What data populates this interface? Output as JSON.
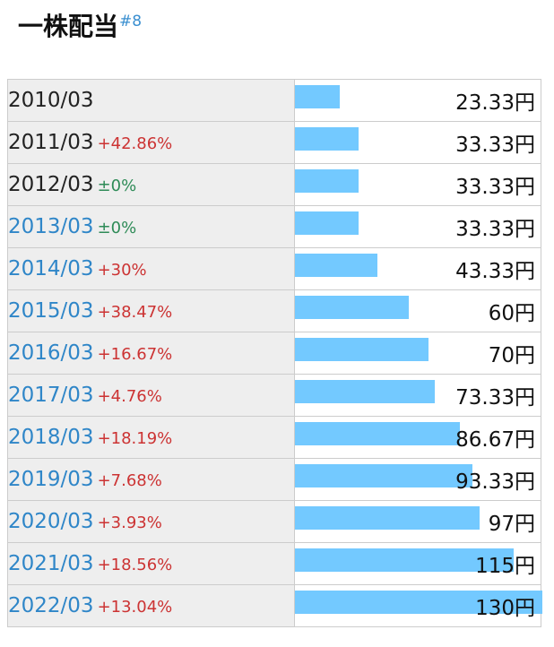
{
  "header": {
    "title": "一株配当",
    "anchor": "#8"
  },
  "chart_data": {
    "type": "bar",
    "unit": "円",
    "categories": [
      "2010/03",
      "2011/03",
      "2012/03",
      "2013/03",
      "2014/03",
      "2015/03",
      "2016/03",
      "2017/03",
      "2018/03",
      "2019/03",
      "2020/03",
      "2021/03",
      "2022/03"
    ],
    "values": [
      23.33,
      33.33,
      33.33,
      33.33,
      43.33,
      60,
      70,
      73.33,
      86.67,
      93.33,
      97,
      115,
      130
    ],
    "rows": [
      {
        "year": "2010/03",
        "change": "",
        "value": "23.33円",
        "linked": false,
        "dir": ""
      },
      {
        "year": "2011/03",
        "change": "+42.86%",
        "value": "33.33円",
        "linked": false,
        "dir": "up"
      },
      {
        "year": "2012/03",
        "change": "±0%",
        "value": "33.33円",
        "linked": false,
        "dir": "flat"
      },
      {
        "year": "2013/03",
        "change": "±0%",
        "value": "33.33円",
        "linked": true,
        "dir": "flat"
      },
      {
        "year": "2014/03",
        "change": "+30%",
        "value": "43.33円",
        "linked": true,
        "dir": "up"
      },
      {
        "year": "2015/03",
        "change": "+38.47%",
        "value": "60円",
        "linked": true,
        "dir": "up"
      },
      {
        "year": "2016/03",
        "change": "+16.67%",
        "value": "70円",
        "linked": true,
        "dir": "up"
      },
      {
        "year": "2017/03",
        "change": "+4.76%",
        "value": "73.33円",
        "linked": true,
        "dir": "up"
      },
      {
        "year": "2018/03",
        "change": "+18.19%",
        "value": "86.67円",
        "linked": true,
        "dir": "up"
      },
      {
        "year": "2019/03",
        "change": "+7.68%",
        "value": "93.33円",
        "linked": true,
        "dir": "up"
      },
      {
        "year": "2020/03",
        "change": "+3.93%",
        "value": "97円",
        "linked": true,
        "dir": "up"
      },
      {
        "year": "2021/03",
        "change": "+18.56%",
        "value": "115円",
        "linked": true,
        "dir": "up"
      },
      {
        "year": "2022/03",
        "change": "+13.04%",
        "value": "130円",
        "linked": true,
        "dir": "up"
      }
    ],
    "ylim": [
      0,
      130
    ]
  },
  "colors": {
    "bar": "#73c9ff",
    "up": "#cc3333",
    "flat": "#2e8b57",
    "link": "#2f86c8",
    "label_bg": "#eeeeee"
  }
}
